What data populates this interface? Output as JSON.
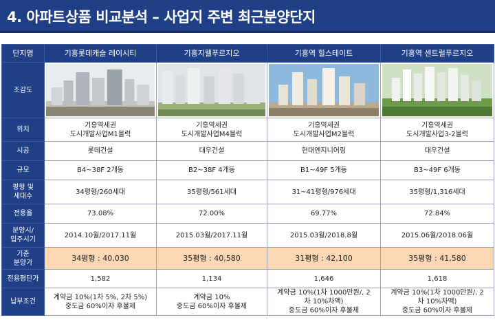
{
  "title": "4. 아파트상품 비교분석 – 사업지 주변 최근분양단지",
  "header_label": "단지명",
  "columns": [
    "기흥롯데캐슬 레이시티",
    "기흥지웰푸르지오",
    "기흥역 힐스테이트",
    "기흥역 센트럴푸르지오"
  ],
  "rows": [
    {
      "label": "조감도",
      "type": "image"
    },
    {
      "label": "위치",
      "values": [
        [
          "기흥역세권",
          "도시개발사업M1블럭"
        ],
        [
          "기흥역세권",
          "도시개발사업M4블럭"
        ],
        [
          "기흥역세권",
          "도시개발사업M2블럭"
        ],
        [
          "기흥역세권",
          "도시개발사업3-2블럭"
        ]
      ]
    },
    {
      "label": "시공",
      "values": [
        [
          "롯데건설"
        ],
        [
          "대우건설"
        ],
        [
          "현대엔지니어링"
        ],
        [
          "대우건설"
        ]
      ]
    },
    {
      "label": "규모",
      "values": [
        [
          "B4~38F 2개동"
        ],
        [
          "B2~38F 4개동"
        ],
        [
          "B1~49F 5개동"
        ],
        [
          "B3~49F 6개동"
        ]
      ]
    },
    {
      "label": [
        "평형 및",
        "세대수"
      ],
      "values": [
        [
          "34평형/260세대"
        ],
        [
          "35평형/561세대"
        ],
        [
          "31~41평형/976세대"
        ],
        [
          "35평형/1,316세대"
        ]
      ]
    },
    {
      "label": "전용율",
      "values": [
        [
          "73.08%"
        ],
        [
          "72.00%"
        ],
        [
          "69.77%"
        ],
        [
          "72.84%"
        ]
      ]
    },
    {
      "label": [
        "분양시/",
        "입주시기"
      ],
      "values": [
        [
          "2014.10월/2017.11월"
        ],
        [
          "2015.03월/2017.11월"
        ],
        [
          "2015.03월/2018.8월"
        ],
        [
          "2015.06월/2018.06월"
        ]
      ]
    },
    {
      "label": [
        "기준",
        "분양가"
      ],
      "highlight": true,
      "values": [
        [
          "34평형 : 40,030"
        ],
        [
          "35평형 : 40,580"
        ],
        [
          "31평형 : 42,100"
        ],
        [
          "35평형 : 41,580"
        ]
      ]
    },
    {
      "label": "전용평단가",
      "values": [
        [
          "1,582"
        ],
        [
          "1,134"
        ],
        [
          "1,646"
        ],
        [
          "1,618"
        ]
      ]
    },
    {
      "label": "납부조건",
      "values": [
        [
          "계약금 10%(1차 5%, 2차 5%)",
          "중도금 60%이자 후불제"
        ],
        [
          "계약금 10%",
          "중도금 60%이자 후불제"
        ],
        [
          "계약금 10%(1차 1000만원/, 2",
          "차 10%차액)",
          "중도금 60%이자 후불제"
        ],
        [
          "계약금 10%(1차 1000만원/, 2",
          "차 10%차액)",
          "중도금 60%이자 후불제"
        ]
      ]
    }
  ],
  "colors": {
    "header_bg": "#1f3f86",
    "highlight_bg": "#fbd7b3",
    "border": "#9aa3b5"
  }
}
